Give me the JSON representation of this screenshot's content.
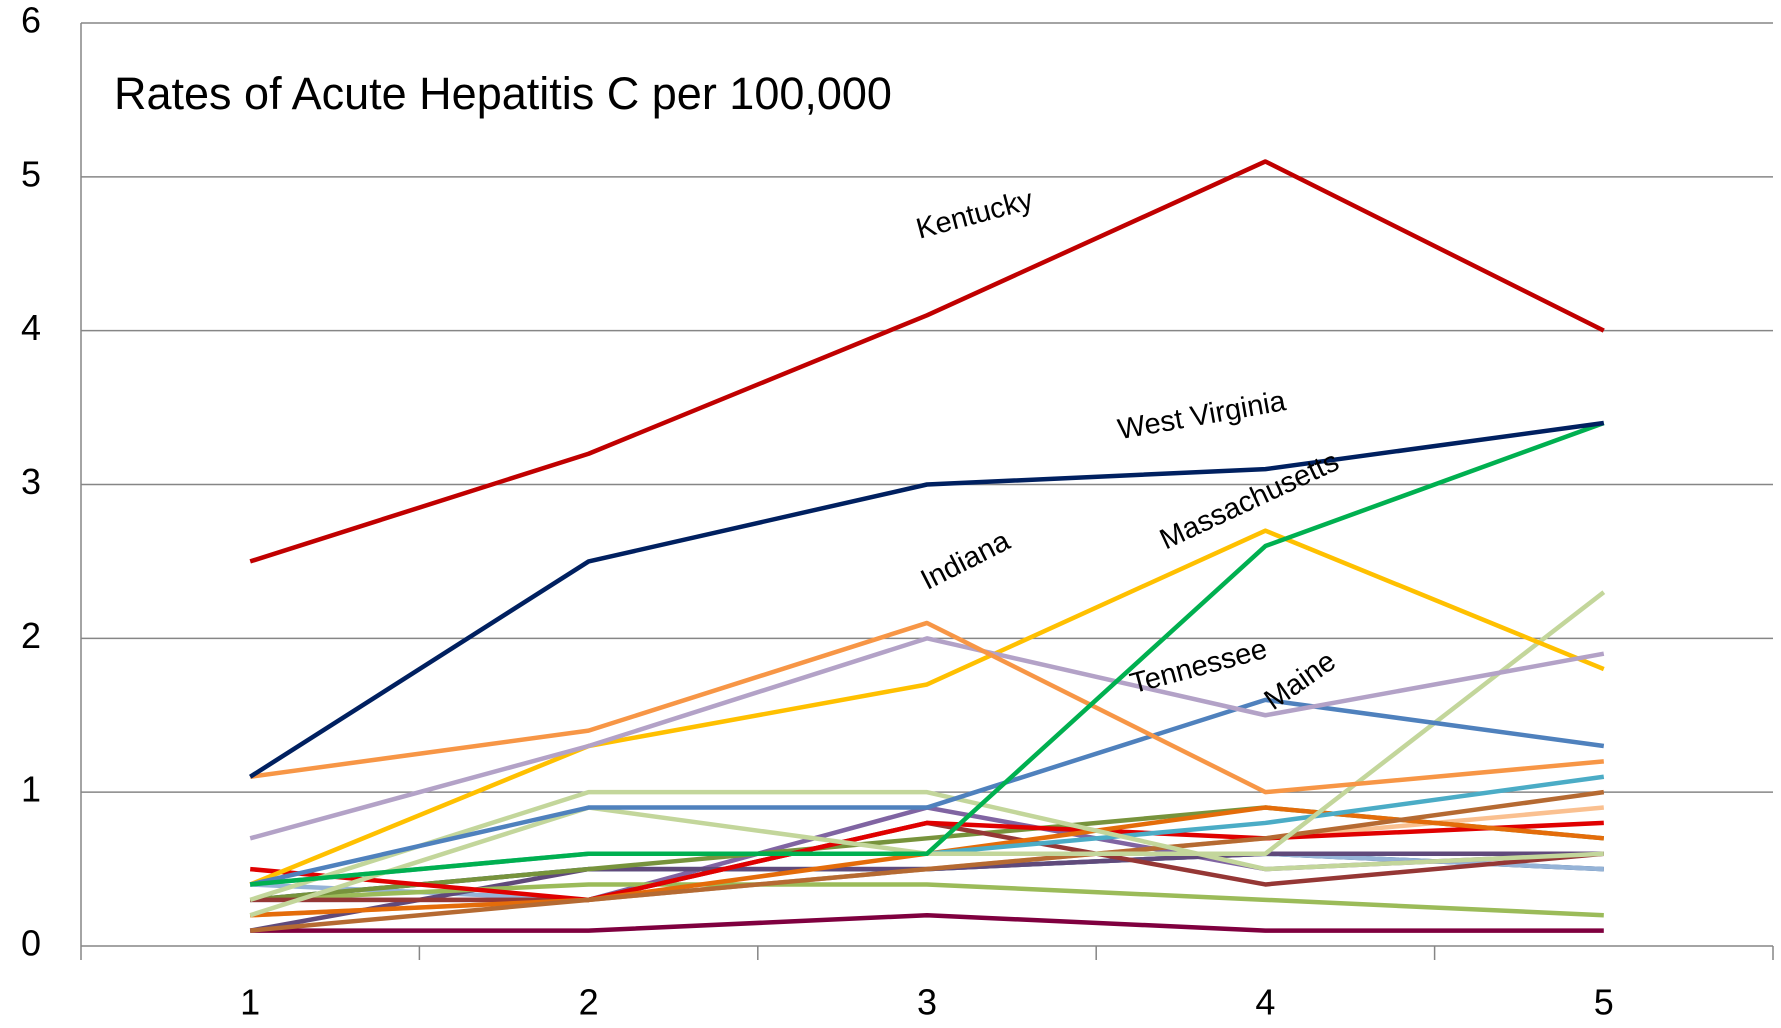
{
  "chart_data": {
    "type": "line",
    "title": "Rates of Acute Hepatitis C per 100,000",
    "categories": [
      1,
      2,
      3,
      4,
      5
    ],
    "ylim": [
      0,
      6
    ],
    "yticks": [
      0,
      1,
      2,
      3,
      4,
      5,
      6
    ],
    "grid": true,
    "series": [
      {
        "name": "Kentucky",
        "color": "#c00000",
        "values": [
          2.5,
          3.2,
          4.1,
          5.1,
          4.0
        ]
      },
      {
        "name": "West Virginia",
        "color": "#002060",
        "values": [
          1.1,
          2.5,
          3.0,
          3.1,
          3.4
        ]
      },
      {
        "name": "Massachusetts",
        "color": "#00b050",
        "values": [
          0.4,
          0.6,
          0.6,
          2.6,
          3.4
        ]
      },
      {
        "name": "Indiana",
        "color": "#f79646",
        "values": [
          1.1,
          1.4,
          2.1,
          1.0,
          1.2
        ]
      },
      {
        "name": "Tennessee",
        "color": "#b3a2c7",
        "values": [
          0.7,
          1.3,
          2.0,
          1.5,
          1.9
        ]
      },
      {
        "name": "Maine",
        "color": "#4f81bd",
        "values": [
          0.4,
          0.9,
          0.9,
          1.6,
          1.3
        ]
      },
      {
        "color": "#ffc000",
        "values": [
          0.4,
          1.3,
          1.7,
          2.7,
          1.8
        ]
      },
      {
        "color": "#c3d69b",
        "values": [
          0.2,
          0.9,
          0.6,
          0.6,
          2.3
        ]
      },
      {
        "color": "#c3d69b",
        "values": [
          0.3,
          1.0,
          1.0,
          0.5,
          0.6
        ]
      },
      {
        "color": "#4bacc6",
        "values": [
          0.4,
          0.6,
          0.6,
          0.8,
          1.1
        ]
      },
      {
        "color": "#b56a32",
        "values": [
          0.1,
          0.3,
          0.5,
          0.7,
          1.0
        ]
      },
      {
        "color": "#e46c0a",
        "values": [
          0.2,
          0.3,
          0.6,
          0.9,
          0.7
        ]
      },
      {
        "color": "#e00000",
        "values": [
          0.5,
          0.3,
          0.8,
          0.7,
          0.8
        ]
      },
      {
        "color": "#953735",
        "values": [
          0.3,
          0.3,
          0.8,
          0.4,
          0.6
        ]
      },
      {
        "color": "#77933c",
        "values": [
          0.3,
          0.5,
          0.7,
          0.9,
          0.7
        ]
      },
      {
        "color": "#9bbb59",
        "values": [
          0.3,
          0.4,
          0.4,
          0.3,
          0.2
        ]
      },
      {
        "color": "#604a7b",
        "values": [
          0.1,
          0.5,
          0.5,
          0.6,
          0.6
        ]
      },
      {
        "color": "#8064a2",
        "values": [
          0.3,
          0.3,
          0.9,
          0.5,
          0.6
        ]
      },
      {
        "color": "#fac090",
        "values": [
          0.2,
          0.3,
          0.5,
          0.7,
          0.9
        ]
      },
      {
        "color": "#95b3d7",
        "values": [
          0.4,
          0.3,
          0.5,
          0.6,
          0.5
        ]
      },
      {
        "color": "#1f497d",
        "values": [
          0.3,
          0.5,
          0.5,
          0.6,
          0.5
        ]
      },
      {
        "color": "#7f003f",
        "values": [
          0.1,
          0.1,
          0.2,
          0.1,
          0.1
        ]
      }
    ]
  }
}
